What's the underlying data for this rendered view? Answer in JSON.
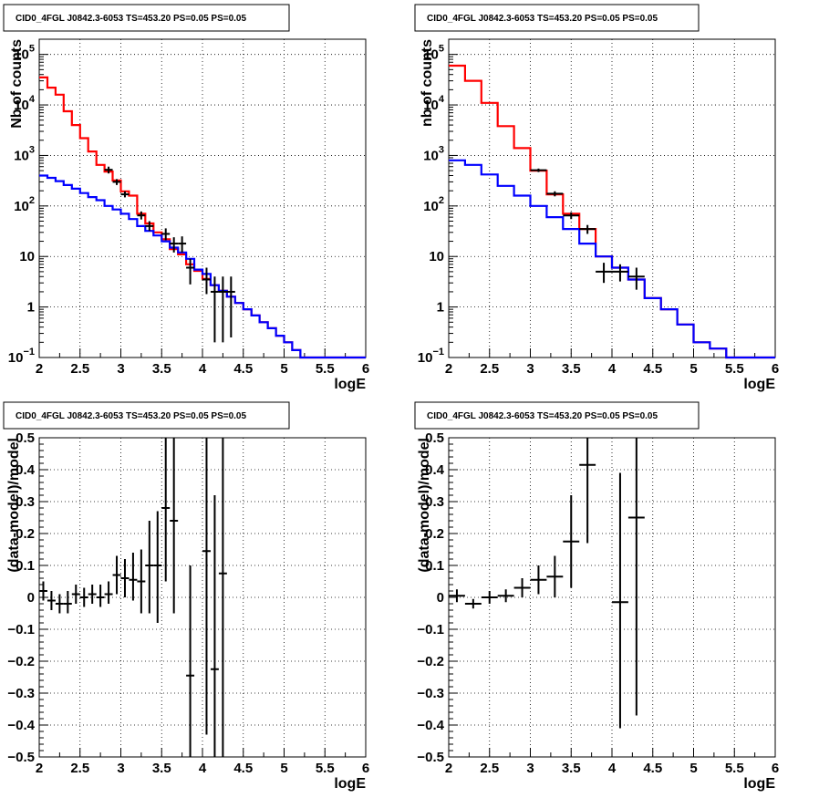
{
  "colors": {
    "model_red": "#ff0000",
    "model_blue": "#0000ff",
    "data": "#000000"
  },
  "chart_data": [
    {
      "type": "line",
      "title": "CID0_4FGL J0842.3-6053 TS=453.20 PS=0.05 PS=0.05",
      "xlabel": "logE",
      "ylabel": "Nb of counts",
      "log_y": true,
      "xlim": [
        2,
        6
      ],
      "ylim": [
        0.1,
        200000
      ],
      "grid": true,
      "xticks": [
        "2",
        "2.5",
        "3",
        "3.5",
        "4",
        "4.5",
        "5",
        "5.5",
        "6"
      ],
      "yticks": [
        {
          "value": 0.1,
          "label": "10",
          "sup": "−1"
        },
        {
          "value": 1,
          "label": "1",
          "sup": ""
        },
        {
          "value": 10,
          "label": "10",
          "sup": ""
        },
        {
          "value": 100,
          "label": "10",
          "sup": "2"
        },
        {
          "value": 1000,
          "label": "10",
          "sup": "3"
        },
        {
          "value": 10000,
          "label": "10",
          "sup": "4"
        },
        {
          "value": 100000,
          "label": "10",
          "sup": "5"
        }
      ],
      "bin_edges": [
        2,
        2.1,
        2.2,
        2.3,
        2.4,
        2.5,
        2.6,
        2.7,
        2.8,
        2.9,
        3,
        3.1,
        3.2,
        3.3,
        3.4,
        3.5,
        3.6,
        3.7,
        3.8,
        3.9,
        4,
        4.1,
        4.2,
        4.3,
        4.4,
        4.5,
        4.6,
        4.7,
        4.8,
        4.9,
        5,
        5.1,
        5.2,
        5.3,
        5.4,
        5.5,
        5.6,
        5.7,
        5.8,
        5.9,
        6
      ],
      "series": [
        {
          "color": "#ff0000",
          "values": [
            35000,
            22000,
            16000,
            7500,
            4000,
            2200,
            1200,
            650,
            480,
            320,
            195,
            160,
            70,
            45,
            30,
            22,
            14,
            11,
            7,
            5.2,
            3.6,
            2.7,
            2.1,
            1.6,
            1.2,
            0.9,
            0.68,
            0.5,
            0.38,
            0.27,
            0.2,
            0.14,
            0.1,
            0.1,
            0.1,
            0.1,
            0.1,
            0.1,
            0.1,
            0.1
          ]
        },
        {
          "color": "#0000ff",
          "values": [
            400,
            360,
            310,
            260,
            220,
            180,
            150,
            130,
            100,
            85,
            70,
            55,
            40,
            32,
            26,
            20,
            15,
            12,
            9,
            5.5,
            4.5,
            2.7,
            2.1,
            1.6,
            1.2,
            0.9,
            0.68,
            0.5,
            0.38,
            0.27,
            0.2,
            0.14,
            0.1,
            0.1,
            0.1,
            0.1,
            0.1,
            0.1,
            0.1,
            0.1
          ]
        }
      ],
      "points": [
        {
          "x": 2.85,
          "y": 520,
          "ylo": 440,
          "yhi": 600
        },
        {
          "x": 2.95,
          "y": 300,
          "ylo": 260,
          "yhi": 340
        },
        {
          "x": 3.05,
          "y": 170,
          "ylo": 148,
          "yhi": 195
        },
        {
          "x": 3.25,
          "y": 65,
          "ylo": 54,
          "yhi": 78
        },
        {
          "x": 3.35,
          "y": 40,
          "ylo": 32,
          "yhi": 50
        },
        {
          "x": 3.55,
          "y": 28,
          "ylo": 21,
          "yhi": 36
        },
        {
          "x": 3.65,
          "y": 18,
          "ylo": 12,
          "yhi": 24
        },
        {
          "x": 3.75,
          "y": 18,
          "ylo": 12,
          "yhi": 25
        },
        {
          "x": 3.85,
          "y": 6,
          "ylo": 2.8,
          "yhi": 9
        },
        {
          "x": 4.05,
          "y": 3.5,
          "ylo": 1.8,
          "yhi": 6
        },
        {
          "x": 4.15,
          "y": 2,
          "ylo": 0.2,
          "yhi": 4
        },
        {
          "x": 4.25,
          "y": 2,
          "ylo": 0.2,
          "yhi": 4
        },
        {
          "x": 4.35,
          "y": 2,
          "ylo": 0.25,
          "yhi": 4
        }
      ],
      "point_half_width": 0.05
    },
    {
      "type": "line",
      "title": "CID0_4FGL J0842.3-6053 TS=453.20 PS=0.05 PS=0.05",
      "xlabel": "logE",
      "ylabel": "nb of counts",
      "log_y": true,
      "xlim": [
        2,
        6
      ],
      "ylim": [
        0.1,
        200000
      ],
      "grid": true,
      "xticks": [
        "2",
        "2.5",
        "3",
        "3.5",
        "4",
        "4.5",
        "5",
        "5.5",
        "6"
      ],
      "yticks": [
        {
          "value": 0.1,
          "label": "10",
          "sup": "−1"
        },
        {
          "value": 1,
          "label": "1",
          "sup": ""
        },
        {
          "value": 10,
          "label": "10",
          "sup": ""
        },
        {
          "value": 100,
          "label": "10",
          "sup": "2"
        },
        {
          "value": 1000,
          "label": "10",
          "sup": "3"
        },
        {
          "value": 10000,
          "label": "10",
          "sup": "4"
        },
        {
          "value": 100000,
          "label": "10",
          "sup": "5"
        }
      ],
      "bin_edges": [
        2,
        2.2,
        2.4,
        2.6,
        2.8,
        3,
        3.2,
        3.4,
        3.6,
        3.8,
        4,
        4.2,
        4.4,
        4.6,
        4.8,
        5,
        5.2,
        5.4,
        5.6,
        5.8,
        6
      ],
      "series": [
        {
          "color": "#ff0000",
          "values": [
            60000,
            30000,
            11000,
            3800,
            1400,
            500,
            170,
            70,
            35,
            10,
            6,
            3.5,
            1.5,
            0.9,
            0.45,
            0.2,
            0.15,
            0.1,
            0.1,
            0.1
          ]
        },
        {
          "color": "#0000ff",
          "values": [
            800,
            650,
            420,
            250,
            160,
            100,
            60,
            35,
            18,
            10,
            6,
            3.5,
            1.5,
            0.9,
            0.45,
            0.2,
            0.15,
            0.1,
            0.1,
            0.1
          ]
        }
      ],
      "points": [
        {
          "x": 3.1,
          "y": 510,
          "ylo": 470,
          "yhi": 550
        },
        {
          "x": 3.3,
          "y": 175,
          "ylo": 155,
          "yhi": 195
        },
        {
          "x": 3.5,
          "y": 65,
          "ylo": 55,
          "yhi": 75
        },
        {
          "x": 3.7,
          "y": 35,
          "ylo": 28,
          "yhi": 42
        },
        {
          "x": 3.9,
          "y": 5,
          "ylo": 3,
          "yhi": 7.5
        },
        {
          "x": 4.1,
          "y": 5,
          "ylo": 3.2,
          "yhi": 7
        },
        {
          "x": 4.3,
          "y": 4,
          "ylo": 2.2,
          "yhi": 6
        }
      ],
      "point_half_width": 0.1
    },
    {
      "type": "scatter",
      "title": "CID0_4FGL J0842.3-6053 TS=453.20 PS=0.05 PS=0.05",
      "xlabel": "logE",
      "ylabel": "(data-model)/model",
      "log_y": false,
      "xlim": [
        2,
        6
      ],
      "ylim": [
        -0.5,
        0.5
      ],
      "grid": true,
      "xticks": [
        "2",
        "2.5",
        "3",
        "3.5",
        "4",
        "4.5",
        "5",
        "5.5",
        "6"
      ],
      "yticks": [
        {
          "value": -0.5,
          "label": "−0.5"
        },
        {
          "value": -0.4,
          "label": "−0.4"
        },
        {
          "value": -0.3,
          "label": "−0.3"
        },
        {
          "value": -0.2,
          "label": "−0.2"
        },
        {
          "value": -0.1,
          "label": "−0.1"
        },
        {
          "value": 0,
          "label": "0"
        },
        {
          "value": 0.1,
          "label": "0.1"
        },
        {
          "value": 0.2,
          "label": "0.2"
        },
        {
          "value": 0.3,
          "label": "0.3"
        },
        {
          "value": 0.4,
          "label": "0.4"
        },
        {
          "value": 0.5,
          "label": "0.5"
        }
      ],
      "points": [
        {
          "x": 2.05,
          "y": 0.02,
          "ylo": -0.01,
          "yhi": 0.05
        },
        {
          "x": 2.15,
          "y": -0.01,
          "ylo": -0.04,
          "yhi": 0.02
        },
        {
          "x": 2.25,
          "y": -0.02,
          "ylo": -0.05,
          "yhi": 0.01
        },
        {
          "x": 2.35,
          "y": -0.02,
          "ylo": -0.05,
          "yhi": 0.02
        },
        {
          "x": 2.45,
          "y": 0.01,
          "ylo": -0.02,
          "yhi": 0.04
        },
        {
          "x": 2.55,
          "y": 0.0,
          "ylo": -0.03,
          "yhi": 0.03
        },
        {
          "x": 2.65,
          "y": 0.01,
          "ylo": -0.02,
          "yhi": 0.04
        },
        {
          "x": 2.75,
          "y": 0.0,
          "ylo": -0.03,
          "yhi": 0.04
        },
        {
          "x": 2.85,
          "y": 0.01,
          "ylo": -0.02,
          "yhi": 0.05
        },
        {
          "x": 2.95,
          "y": 0.07,
          "ylo": 0.01,
          "yhi": 0.13
        },
        {
          "x": 3.05,
          "y": 0.06,
          "ylo": 0.0,
          "yhi": 0.12
        },
        {
          "x": 3.15,
          "y": 0.055,
          "ylo": -0.01,
          "yhi": 0.14
        },
        {
          "x": 3.25,
          "y": 0.05,
          "ylo": -0.05,
          "yhi": 0.15
        },
        {
          "x": 3.35,
          "y": 0.1,
          "ylo": -0.05,
          "yhi": 0.24
        },
        {
          "x": 3.45,
          "y": 0.1,
          "ylo": -0.08,
          "yhi": 0.27
        },
        {
          "x": 3.55,
          "y": 0.28,
          "ylo": 0.05,
          "yhi": 0.5
        },
        {
          "x": 3.65,
          "y": 0.24,
          "ylo": -0.05,
          "yhi": 0.5
        },
        {
          "x": 3.85,
          "y": -0.245,
          "ylo": -0.5,
          "yhi": 0.1
        },
        {
          "x": 4.05,
          "y": 0.145,
          "ylo": -0.43,
          "yhi": 0.5
        },
        {
          "x": 4.15,
          "y": -0.225,
          "ylo": -0.5,
          "yhi": 0.32
        },
        {
          "x": 4.25,
          "y": 0.075,
          "ylo": -0.5,
          "yhi": 0.5
        }
      ],
      "point_half_width": 0.05
    },
    {
      "type": "scatter",
      "title": "CID0_4FGL J0842.3-6053 TS=453.20 PS=0.05 PS=0.05",
      "xlabel": "logE",
      "ylabel": "(data-model)/model",
      "log_y": false,
      "xlim": [
        2,
        6
      ],
      "ylim": [
        -0.5,
        0.5
      ],
      "grid": true,
      "xticks": [
        "2",
        "2.5",
        "3",
        "3.5",
        "4",
        "4.5",
        "5",
        "5.5",
        "6"
      ],
      "yticks": [
        {
          "value": -0.5,
          "label": "−0.5"
        },
        {
          "value": -0.4,
          "label": "−0.4"
        },
        {
          "value": -0.3,
          "label": "−0.3"
        },
        {
          "value": -0.2,
          "label": "−0.2"
        },
        {
          "value": -0.1,
          "label": "−0.1"
        },
        {
          "value": 0,
          "label": "0"
        },
        {
          "value": 0.1,
          "label": "0.1"
        },
        {
          "value": 0.2,
          "label": "0.2"
        },
        {
          "value": 0.3,
          "label": "0.3"
        },
        {
          "value": 0.4,
          "label": "0.4"
        },
        {
          "value": 0.5,
          "label": "0.5"
        }
      ],
      "points": [
        {
          "x": 2.1,
          "y": 0.005,
          "ylo": -0.015,
          "yhi": 0.025
        },
        {
          "x": 2.3,
          "y": -0.02,
          "ylo": -0.035,
          "yhi": -0.005
        },
        {
          "x": 2.5,
          "y": 0.0,
          "ylo": -0.02,
          "yhi": 0.02
        },
        {
          "x": 2.7,
          "y": 0.005,
          "ylo": -0.015,
          "yhi": 0.025
        },
        {
          "x": 2.9,
          "y": 0.03,
          "ylo": 0.0,
          "yhi": 0.06
        },
        {
          "x": 3.1,
          "y": 0.055,
          "ylo": 0.01,
          "yhi": 0.1
        },
        {
          "x": 3.3,
          "y": 0.065,
          "ylo": 0.0,
          "yhi": 0.13
        },
        {
          "x": 3.5,
          "y": 0.175,
          "ylo": 0.03,
          "yhi": 0.32
        },
        {
          "x": 3.7,
          "y": 0.415,
          "ylo": 0.17,
          "yhi": 0.5
        },
        {
          "x": 4.1,
          "y": -0.015,
          "ylo": -0.41,
          "yhi": 0.39
        },
        {
          "x": 4.3,
          "y": 0.25,
          "ylo": -0.37,
          "yhi": 0.5
        }
      ],
      "point_half_width": 0.1
    }
  ]
}
